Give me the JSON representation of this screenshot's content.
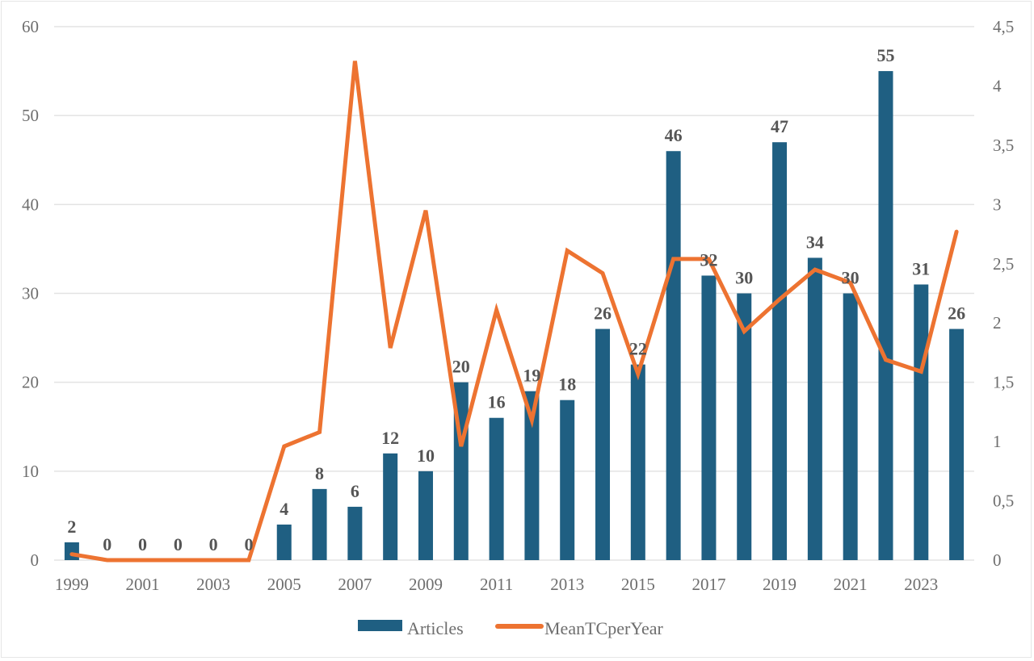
{
  "chart_data": {
    "type": "bar",
    "title": "",
    "xlabel": "",
    "ylabel": "",
    "y2label": "",
    "categories": [
      "1999",
      "2000",
      "2001",
      "2002",
      "2003",
      "2004",
      "2005",
      "2006",
      "2007",
      "2008",
      "2009",
      "2010",
      "2011",
      "2012",
      "2013",
      "2014",
      "2015",
      "2016",
      "2017",
      "2018",
      "2019",
      "2020",
      "2021",
      "2022",
      "2023",
      "2024"
    ],
    "x_tick_labels": [
      "1999",
      "2001",
      "2003",
      "2005",
      "2007",
      "2009",
      "2011",
      "2013",
      "2015",
      "2017",
      "2019",
      "2021",
      "2023"
    ],
    "series": [
      {
        "name": "Articles",
        "type": "bar",
        "axis": "left",
        "color": "#1f5f82",
        "values": [
          2,
          0,
          0,
          0,
          0,
          0,
          4,
          8,
          6,
          12,
          10,
          20,
          16,
          19,
          18,
          26,
          22,
          46,
          32,
          30,
          47,
          34,
          30,
          55,
          31,
          26
        ],
        "data_labels": [
          "2",
          "0",
          "0",
          "0",
          "0",
          "0",
          "4",
          "8",
          "6",
          "12",
          "10",
          "20",
          "16",
          "19",
          "18",
          "26",
          "22",
          "46",
          "32",
          "30",
          "47",
          "34",
          "30",
          "55",
          "31",
          "26"
        ]
      },
      {
        "name": "MeanTCperYear",
        "type": "line",
        "axis": "right",
        "color": "#ed7331",
        "values": [
          0.05,
          0,
          0,
          0,
          0,
          0,
          0.96,
          1.08,
          4.21,
          1.79,
          2.95,
          0.96,
          2.11,
          1.18,
          2.61,
          2.42,
          1.57,
          2.54,
          2.54,
          1.93,
          2.2,
          2.45,
          2.34,
          1.69,
          1.59,
          2.77
        ]
      }
    ],
    "ylim": [
      0,
      60
    ],
    "y_ticks": [
      0,
      10,
      20,
      30,
      40,
      50,
      60
    ],
    "y_tick_labels": [
      "0",
      "10",
      "20",
      "30",
      "40",
      "50",
      "60"
    ],
    "y2lim": [
      0,
      4.5
    ],
    "y2_ticks": [
      0,
      0.5,
      1,
      1.5,
      2,
      2.5,
      3,
      3.5,
      4,
      4.5
    ],
    "y2_tick_labels": [
      "0",
      "0,5",
      "1",
      "1,5",
      "2",
      "2,5",
      "3",
      "3,5",
      "4",
      "4,5"
    ],
    "grid": true,
    "legend": {
      "position": "bottom",
      "entries": [
        "Articles",
        "MeanTCperYear"
      ]
    }
  }
}
